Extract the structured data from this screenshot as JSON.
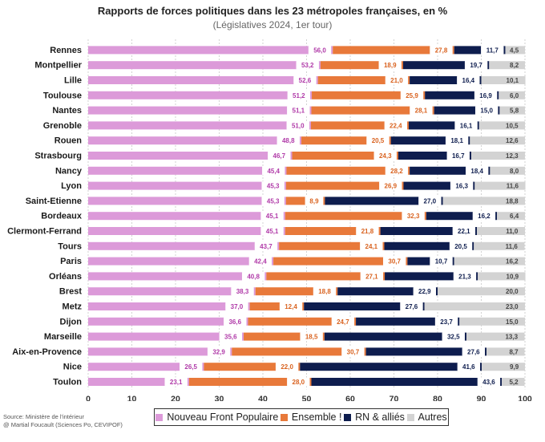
{
  "title": "Rapports de forces politiques dans les 23 métropoles françaises, en %",
  "subtitle": "(Législatives 2024, 1er tour)",
  "source_line1": "Source: Ministère de l'intérieur",
  "source_line2": "@ Martial Foucault (Sciences Po, CEVIPOF)",
  "colors": {
    "nfp": "#dc9ad9",
    "ensemble": "#e8793a",
    "rn": "#0e1d4e",
    "autres": "#d3d3d3"
  },
  "chart_data": {
    "type": "bar",
    "orientation": "horizontal",
    "stacked": true,
    "xlim": [
      0,
      100
    ],
    "xticks": [
      0,
      10,
      20,
      30,
      40,
      50,
      60,
      70,
      80,
      90,
      100
    ],
    "grid": true,
    "legend_position": "bottom",
    "categories": [
      "Rennes",
      "Montpellier",
      "Lille",
      "Toulouse",
      "Nantes",
      "Grenoble",
      "Rouen",
      "Strasbourg",
      "Nancy",
      "Lyon",
      "Saint-Etienne",
      "Bordeaux",
      "Clermont-Ferrand",
      "Tours",
      "Paris",
      "Orléans",
      "Brest",
      "Metz",
      "Dijon",
      "Marseille",
      "Aix-en-Provence",
      "Nice",
      "Toulon"
    ],
    "series": [
      {
        "name": "Nouveau Front Populaire",
        "key": "nfp",
        "values": [
          56.0,
          53.2,
          52.6,
          51.2,
          51.1,
          51.0,
          48.8,
          46.7,
          45.4,
          45.3,
          45.3,
          45.1,
          45.1,
          43.7,
          42.4,
          40.8,
          38.3,
          37.0,
          36.6,
          35.6,
          32.9,
          26.5,
          23.1
        ],
        "labels": [
          "56,0",
          "53,2",
          "52,6",
          "51,2",
          "51,1",
          "51,0",
          "48,8",
          "46,7",
          "45,4",
          "45,3",
          "45,3",
          "45,1",
          "45,1",
          "43,7",
          "42,4",
          "40,8",
          "38,3",
          "37,0",
          "36,6",
          "35,6",
          "32,9",
          "26,5",
          "23,1"
        ]
      },
      {
        "name": "Ensemble !",
        "key": "ensemble",
        "values": [
          27.8,
          18.9,
          21.0,
          25.9,
          28.1,
          22.4,
          20.5,
          24.3,
          28.2,
          26.9,
          8.9,
          32.3,
          21.8,
          24.1,
          30.7,
          27.1,
          18.8,
          12.4,
          24.7,
          18.5,
          30.7,
          22.0,
          28.0
        ],
        "labels": [
          "27,8",
          "18,9",
          "21,0",
          "25,9",
          "28,1",
          "22,4",
          "20,5",
          "24,3",
          "28,2",
          "26,9",
          "8,9",
          "32,3",
          "21,8",
          "24,1",
          "30,7",
          "27,1",
          "18,8",
          "12,4",
          "24,7",
          "18,5",
          "30,7",
          "22,0",
          "28,0"
        ]
      },
      {
        "name": "RN & alliés",
        "key": "rn",
        "values": [
          11.7,
          19.7,
          16.4,
          16.9,
          15.0,
          16.1,
          18.1,
          16.7,
          18.4,
          16.3,
          27.0,
          16.2,
          22.1,
          20.5,
          10.7,
          21.3,
          22.9,
          27.6,
          23.7,
          32.5,
          27.6,
          41.6,
          43.6
        ],
        "labels": [
          "11,7",
          "19,7",
          "16,4",
          "16,9",
          "15,0",
          "16,1",
          "18,1",
          "16,7",
          "18,4",
          "16,3",
          "27,0",
          "16,2",
          "22,1",
          "20,5",
          "10,7",
          "21,3",
          "22,9",
          "27,6",
          "23,7",
          "32,5",
          "27,6",
          "41,6",
          "43,6"
        ]
      },
      {
        "name": "Autres",
        "key": "autres",
        "values": [
          4.5,
          8.2,
          10.1,
          6.0,
          5.8,
          10.5,
          12.6,
          12.3,
          8.0,
          11.6,
          18.8,
          6.4,
          11.0,
          11.6,
          16.2,
          10.9,
          20.0,
          23.0,
          15.0,
          13.3,
          8.7,
          9.9,
          5.2
        ],
        "labels": [
          "4,5",
          "8,2",
          "10,1",
          "6,0",
          "5,8",
          "10,5",
          "12,6",
          "12,3",
          "8,0",
          "11,6",
          "18,8",
          "6,4",
          "11,0",
          "11,6",
          "16,2",
          "10,9",
          "20,0",
          "23,0",
          "15,0",
          "13,3",
          "8,7",
          "9,9",
          "5,2"
        ]
      }
    ]
  }
}
